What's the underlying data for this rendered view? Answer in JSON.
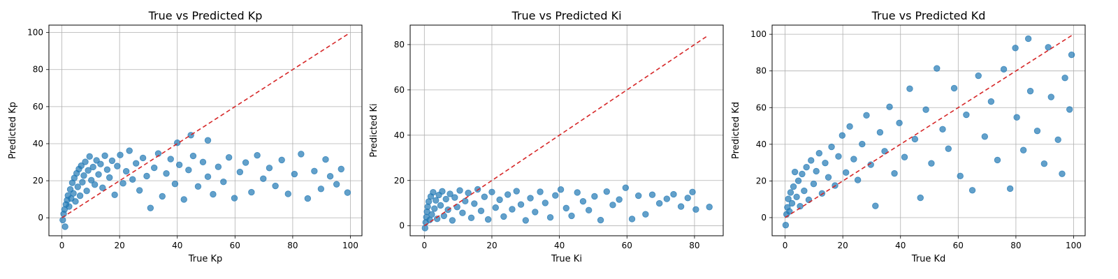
{
  "chart_data": [
    {
      "type": "scatter",
      "title": "True vs Predicted Kp",
      "xlabel": "True Kp",
      "ylabel": "Predicted Kp",
      "xlim": [
        -4.5,
        104
      ],
      "ylim": [
        -9.7,
        104
      ],
      "xticks": [
        0,
        20,
        40,
        60,
        80,
        100
      ],
      "yticks": [
        0,
        20,
        40,
        60,
        80,
        100
      ],
      "grid": true,
      "reference_line": {
        "style": "dashed",
        "color": "#d62728",
        "from": [
          0,
          0
        ],
        "to": [
          99,
          99
        ]
      },
      "point_color": "#1f77b4",
      "points": [
        [
          0.3,
          -1.2
        ],
        [
          0.6,
          2.1
        ],
        [
          0.9,
          4.5
        ],
        [
          1.1,
          -4.8
        ],
        [
          1.4,
          7.2
        ],
        [
          1.8,
          9.5
        ],
        [
          2.1,
          12.0
        ],
        [
          2.5,
          6.1
        ],
        [
          2.9,
          15.3
        ],
        [
          3.2,
          10.4
        ],
        [
          3.6,
          18.9
        ],
        [
          4.0,
          13.2
        ],
        [
          4.3,
          21.5
        ],
        [
          4.7,
          8.8
        ],
        [
          5.1,
          24.0
        ],
        [
          5.5,
          16.7
        ],
        [
          5.9,
          26.3
        ],
        [
          6.3,
          11.9
        ],
        [
          6.7,
          28.1
        ],
        [
          7.1,
          19.2
        ],
        [
          7.6,
          22.8
        ],
        [
          8.1,
          30.2
        ],
        [
          8.6,
          14.5
        ],
        [
          9.1,
          25.6
        ],
        [
          9.6,
          33.1
        ],
        [
          10.2,
          20.3
        ],
        [
          10.8,
          27.4
        ],
        [
          11.4,
          17.9
        ],
        [
          12.0,
          31.0
        ],
        [
          12.7,
          23.4
        ],
        [
          13.4,
          29.0
        ],
        [
          14.1,
          16.2
        ],
        [
          14.9,
          33.5
        ],
        [
          15.7,
          26.0
        ],
        [
          16.5,
          21.7
        ],
        [
          17.4,
          30.8
        ],
        [
          18.3,
          12.4
        ],
        [
          19.2,
          27.9
        ],
        [
          20.2,
          33.9
        ],
        [
          21.2,
          18.6
        ],
        [
          22.3,
          25.1
        ],
        [
          23.4,
          36.2
        ],
        [
          24.5,
          20.7
        ],
        [
          25.7,
          29.4
        ],
        [
          26.9,
          14.8
        ],
        [
          28.1,
          32.3
        ],
        [
          29.4,
          22.5
        ],
        [
          30.7,
          5.3
        ],
        [
          32.0,
          27.0
        ],
        [
          33.4,
          34.7
        ],
        [
          34.8,
          11.6
        ],
        [
          36.2,
          23.9
        ],
        [
          37.7,
          31.7
        ],
        [
          39.2,
          18.3
        ],
        [
          40.0,
          40.5
        ],
        [
          40.7,
          28.6
        ],
        [
          42.3,
          9.9
        ],
        [
          43.9,
          25.8
        ],
        [
          44.7,
          44.6
        ],
        [
          45.5,
          33.4
        ],
        [
          47.2,
          16.9
        ],
        [
          48.9,
          30.1
        ],
        [
          50.6,
          41.8
        ],
        [
          50.6,
          22.2
        ],
        [
          52.4,
          12.7
        ],
        [
          54.2,
          27.5
        ],
        [
          56.0,
          19.4
        ],
        [
          57.9,
          32.6
        ],
        [
          59.8,
          10.6
        ],
        [
          61.7,
          24.7
        ],
        [
          63.7,
          29.8
        ],
        [
          65.7,
          13.8
        ],
        [
          67.7,
          33.7
        ],
        [
          69.8,
          21.1
        ],
        [
          71.9,
          26.9
        ],
        [
          74.0,
          17.2
        ],
        [
          76.2,
          31.2
        ],
        [
          78.4,
          12.9
        ],
        [
          80.6,
          23.6
        ],
        [
          82.9,
          34.4
        ],
        [
          85.2,
          10.4
        ],
        [
          87.5,
          25.2
        ],
        [
          89.8,
          15.6
        ],
        [
          91.4,
          31.5
        ],
        [
          93.0,
          22.4
        ],
        [
          95.2,
          18.1
        ],
        [
          96.8,
          26.3
        ],
        [
          99.0,
          13.6
        ]
      ]
    },
    {
      "type": "scatter",
      "title": "True vs Predicted Ki",
      "xlabel": "True Ki",
      "ylabel": "Predicted Ki",
      "xlim": [
        -4.2,
        88.5
      ],
      "ylim": [
        -4.4,
        88.6
      ],
      "xticks": [
        0,
        20,
        40,
        60,
        80
      ],
      "yticks": [
        0,
        20,
        40,
        60,
        80
      ],
      "grid": true,
      "reference_line": {
        "style": "dashed",
        "color": "#d62728",
        "from": [
          0,
          0
        ],
        "to": [
          84,
          84
        ]
      },
      "point_color": "#1f77b4",
      "points": [
        [
          0.2,
          -1.0
        ],
        [
          0.4,
          1.5
        ],
        [
          0.6,
          3.8
        ],
        [
          0.8,
          6.2
        ],
        [
          1.0,
          8.4
        ],
        [
          1.3,
          10.7
        ],
        [
          1.6,
          2.6
        ],
        [
          1.9,
          12.9
        ],
        [
          2.2,
          5.0
        ],
        [
          2.6,
          14.8
        ],
        [
          3.0,
          7.6
        ],
        [
          3.4,
          11.2
        ],
        [
          3.8,
          3.1
        ],
        [
          4.3,
          13.6
        ],
        [
          4.8,
          9.0
        ],
        [
          5.3,
          15.2
        ],
        [
          5.8,
          4.4
        ],
        [
          6.4,
          11.8
        ],
        [
          7.0,
          7.1
        ],
        [
          7.6,
          14.1
        ],
        [
          8.3,
          2.4
        ],
        [
          9.0,
          12.5
        ],
        [
          9.7,
          8.3
        ],
        [
          10.5,
          15.6
        ],
        [
          11.3,
          5.7
        ],
        [
          12.1,
          10.9
        ],
        [
          13.0,
          14.5
        ],
        [
          13.9,
          3.5
        ],
        [
          14.8,
          9.8
        ],
        [
          15.8,
          16.1
        ],
        [
          16.8,
          6.6
        ],
        [
          17.8,
          12.8
        ],
        [
          18.9,
          2.8
        ],
        [
          20.0,
          14.9
        ],
        [
          21.1,
          8.0
        ],
        [
          22.3,
          11.5
        ],
        [
          23.5,
          4.1
        ],
        [
          24.7,
          13.8
        ],
        [
          26.0,
          7.3
        ],
        [
          27.3,
          15.3
        ],
        [
          28.6,
          9.4
        ],
        [
          30.0,
          2.4
        ],
        [
          31.4,
          12.2
        ],
        [
          32.8,
          6.1
        ],
        [
          34.3,
          15.0
        ],
        [
          35.8,
          10.1
        ],
        [
          37.3,
          3.7
        ],
        [
          38.8,
          13.4
        ],
        [
          40.4,
          16.0
        ],
        [
          42.0,
          7.8
        ],
        [
          43.6,
          4.4
        ],
        [
          45.3,
          14.7
        ],
        [
          47.0,
          10.8
        ],
        [
          48.7,
          6.9
        ],
        [
          50.4,
          13.0
        ],
        [
          52.2,
          2.5
        ],
        [
          54.0,
          15.1
        ],
        [
          55.8,
          9.2
        ],
        [
          57.7,
          11.6
        ],
        [
          59.6,
          16.8
        ],
        [
          61.5,
          3.0
        ],
        [
          63.4,
          13.3
        ],
        [
          65.5,
          5.1
        ],
        [
          67.5,
          13.7
        ],
        [
          69.6,
          9.9
        ],
        [
          71.8,
          11.9
        ],
        [
          73.8,
          13.9
        ],
        [
          76.0,
          8.5
        ],
        [
          78.0,
          12.3
        ],
        [
          79.4,
          14.9
        ],
        [
          80.4,
          7.2
        ],
        [
          84.4,
          8.3
        ]
      ]
    },
    {
      "type": "scatter",
      "title": "True vs Predicted Kd",
      "xlabel": "True Kd",
      "ylabel": "Predicted Kd",
      "xlim": [
        -4.5,
        104
      ],
      "ylim": [
        -9.9,
        105
      ],
      "xticks": [
        0,
        20,
        40,
        60,
        80,
        100
      ],
      "yticks": [
        0,
        20,
        40,
        60,
        80,
        100
      ],
      "grid": true,
      "reference_line": {
        "style": "dashed",
        "color": "#d62728",
        "from": [
          0,
          0
        ],
        "to": [
          99.5,
          99.5
        ]
      },
      "point_color": "#1f77b4",
      "points": [
        [
          0.2,
          -4.1
        ],
        [
          0.5,
          1.8
        ],
        [
          0.8,
          5.6
        ],
        [
          1.1,
          10.2
        ],
        [
          1.5,
          3.4
        ],
        [
          1.9,
          13.7
        ],
        [
          2.4,
          7.8
        ],
        [
          2.9,
          16.9
        ],
        [
          3.4,
          24.9
        ],
        [
          4.0,
          11.3
        ],
        [
          4.6,
          20.1
        ],
        [
          5.2,
          6.2
        ],
        [
          5.9,
          23.8
        ],
        [
          6.6,
          14.6
        ],
        [
          7.4,
          27.5
        ],
        [
          8.2,
          9.7
        ],
        [
          9.0,
          31.2
        ],
        [
          9.9,
          18.4
        ],
        [
          10.8,
          25.3
        ],
        [
          11.8,
          35.1
        ],
        [
          12.8,
          13.2
        ],
        [
          13.9,
          29.8
        ],
        [
          15.0,
          22.0
        ],
        [
          16.1,
          38.6
        ],
        [
          17.3,
          17.5
        ],
        [
          18.5,
          33.4
        ],
        [
          19.8,
          44.8
        ],
        [
          21.1,
          24.6
        ],
        [
          22.4,
          49.7
        ],
        [
          23.8,
          31.9
        ],
        [
          25.2,
          20.5
        ],
        [
          26.7,
          40.1
        ],
        [
          28.2,
          55.8
        ],
        [
          29.7,
          28.9
        ],
        [
          31.3,
          6.4
        ],
        [
          32.9,
          46.5
        ],
        [
          34.5,
          36.2
        ],
        [
          36.2,
          60.4
        ],
        [
          37.9,
          24.1
        ],
        [
          39.6,
          51.6
        ],
        [
          41.4,
          33.0
        ],
        [
          43.2,
          70.3
        ],
        [
          45.0,
          42.8
        ],
        [
          46.9,
          10.8
        ],
        [
          48.8,
          58.9
        ],
        [
          50.7,
          29.6
        ],
        [
          52.6,
          81.4
        ],
        [
          54.6,
          48.2
        ],
        [
          56.6,
          37.6
        ],
        [
          58.6,
          70.6
        ],
        [
          60.7,
          22.7
        ],
        [
          62.8,
          56.1
        ],
        [
          64.9,
          14.9
        ],
        [
          67.0,
          77.4
        ],
        [
          69.2,
          44.2
        ],
        [
          71.4,
          63.3
        ],
        [
          73.6,
          31.4
        ],
        [
          75.8,
          80.9
        ],
        [
          78.0,
          15.8
        ],
        [
          79.8,
          92.5
        ],
        [
          80.3,
          54.7
        ],
        [
          82.6,
          36.8
        ],
        [
          84.3,
          97.6
        ],
        [
          85.0,
          69.0
        ],
        [
          87.4,
          47.3
        ],
        [
          89.8,
          29.4
        ],
        [
          91.2,
          92.9
        ],
        [
          92.2,
          65.8
        ],
        [
          94.6,
          42.5
        ],
        [
          96.0,
          23.9
        ],
        [
          97.0,
          76.2
        ],
        [
          98.6,
          59.0
        ],
        [
          99.3,
          88.8
        ]
      ]
    }
  ]
}
